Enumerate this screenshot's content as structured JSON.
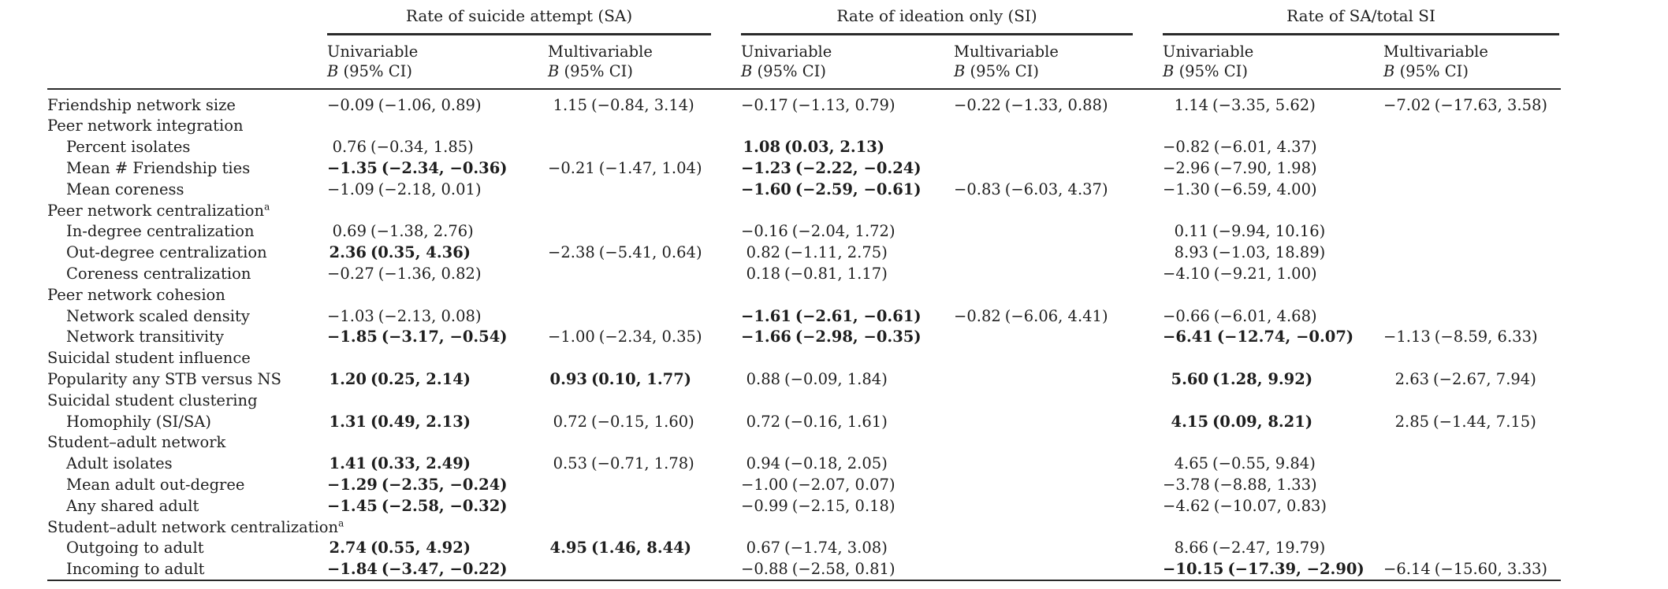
{
  "page": {
    "background": "#ffffff",
    "text_color": "#1e1e1e",
    "rule_color": "#2a2a2a"
  },
  "table": {
    "groups": [
      {
        "title": "Rate of suicide attempt (SA)"
      },
      {
        "title": "Rate of ideation only (SI)"
      },
      {
        "title": "Rate of SA/total SI"
      }
    ],
    "subheader": {
      "col_types": [
        "Univariable",
        "Multivariable"
      ],
      "stat_italic": "B",
      "stat_rest": "(95% CI)"
    },
    "rows": [
      {
        "label": "Friendship network size",
        "indent": false,
        "sup": "",
        "cells": [
          {
            "v": "−0.09 (−1.06, 0.89)",
            "b": false
          },
          {
            "v": "1.15 (−0.84, 3.14)",
            "b": false
          },
          {
            "v": "−0.17 (−1.13, 0.79)",
            "b": false
          },
          {
            "v": "−0.22 (−1.33, 0.88)",
            "b": false
          },
          {
            "v": "1.14 (−3.35, 5.62)",
            "b": false
          },
          {
            "v": "−7.02 (−17.63, 3.58)",
            "b": false
          }
        ]
      },
      {
        "label": "Peer network integration",
        "indent": false,
        "sup": "",
        "cells": [
          null,
          null,
          null,
          null,
          null,
          null
        ]
      },
      {
        "label": "Percent isolates",
        "indent": true,
        "sup": "",
        "cells": [
          {
            "v": "0.76 (−0.34, 1.85)",
            "b": false
          },
          null,
          {
            "v": "1.08 (0.03, 2.13)",
            "b": true
          },
          null,
          {
            "v": "−0.82 (−6.01, 4.37)",
            "b": false
          },
          null
        ]
      },
      {
        "label": "Mean # Friendship ties",
        "indent": true,
        "sup": "",
        "cells": [
          {
            "v": "−1.35 (−2.34, −0.36)",
            "b": true
          },
          {
            "v": "−0.21 (−1.47, 1.04)",
            "b": false
          },
          {
            "v": "−1.23 (−2.22, −0.24)",
            "b": true
          },
          null,
          {
            "v": "−2.96 (−7.90, 1.98)",
            "b": false
          },
          null
        ]
      },
      {
        "label": "Mean coreness",
        "indent": true,
        "sup": "",
        "cells": [
          {
            "v": "−1.09 (−2.18, 0.01)",
            "b": false
          },
          null,
          {
            "v": "−1.60 (−2.59, −0.61)",
            "b": true
          },
          {
            "v": "−0.83 (−6.03, 4.37)",
            "b": false
          },
          {
            "v": "−1.30 (−6.59, 4.00)",
            "b": false
          },
          null
        ]
      },
      {
        "label": "Peer network centralization",
        "indent": false,
        "sup": "a",
        "cells": [
          null,
          null,
          null,
          null,
          null,
          null
        ]
      },
      {
        "label": "In-degree centralization",
        "indent": true,
        "sup": "",
        "cells": [
          {
            "v": "0.69 (−1.38, 2.76)",
            "b": false
          },
          null,
          {
            "v": "−0.16 (−2.04, 1.72)",
            "b": false
          },
          null,
          {
            "v": "0.11 (−9.94, 10.16)",
            "b": false
          },
          null
        ]
      },
      {
        "label": "Out-degree centralization",
        "indent": true,
        "sup": "",
        "cells": [
          {
            "v": "2.36 (0.35, 4.36)",
            "b": true
          },
          {
            "v": "−2.38 (−5.41, 0.64)",
            "b": false
          },
          {
            "v": "0.82 (−1.11, 2.75)",
            "b": false
          },
          null,
          {
            "v": "8.93 (−1.03, 18.89)",
            "b": false
          },
          null
        ]
      },
      {
        "label": "Coreness centralization",
        "indent": true,
        "sup": "",
        "cells": [
          {
            "v": "−0.27 (−1.36, 0.82)",
            "b": false
          },
          null,
          {
            "v": "0.18 (−0.81, 1.17)",
            "b": false
          },
          null,
          {
            "v": "−4.10 (−9.21, 1.00)",
            "b": false
          },
          null
        ]
      },
      {
        "label": "Peer network cohesion",
        "indent": false,
        "sup": "",
        "cells": [
          null,
          null,
          null,
          null,
          null,
          null
        ]
      },
      {
        "label": "Network scaled density",
        "indent": true,
        "sup": "",
        "cells": [
          {
            "v": "−1.03 (−2.13, 0.08)",
            "b": false
          },
          null,
          {
            "v": "−1.61 (−2.61, −0.61)",
            "b": true
          },
          {
            "v": "−0.82 (−6.06, 4.41)",
            "b": false
          },
          {
            "v": "−0.66 (−6.01, 4.68)",
            "b": false
          },
          null
        ]
      },
      {
        "label": "Network transitivity",
        "indent": true,
        "sup": "",
        "cells": [
          {
            "v": "−1.85 (−3.17, −0.54)",
            "b": true
          },
          {
            "v": "−1.00 (−2.34, 0.35)",
            "b": false
          },
          {
            "v": "−1.66 (−2.98, −0.35)",
            "b": true
          },
          null,
          {
            "v": "−6.41 (−12.74, −0.07)",
            "b": true
          },
          {
            "v": "−1.13 (−8.59, 6.33)",
            "b": false
          }
        ]
      },
      {
        "label": "Suicidal student influence",
        "indent": false,
        "sup": "",
        "cells": [
          null,
          null,
          null,
          null,
          null,
          null
        ]
      },
      {
        "label": "Popularity any STB versus NS",
        "indent": false,
        "sup": "",
        "cells": [
          {
            "v": "1.20 (0.25, 2.14)",
            "b": true
          },
          {
            "v": "0.93 (0.10, 1.77)",
            "b": true
          },
          {
            "v": "0.88 (−0.09, 1.84)",
            "b": false
          },
          null,
          {
            "v": "5.60 (1.28, 9.92)",
            "b": true
          },
          {
            "v": "2.63 (−2.67, 7.94)",
            "b": false
          }
        ]
      },
      {
        "label": "Suicidal student clustering",
        "indent": false,
        "sup": "",
        "cells": [
          null,
          null,
          null,
          null,
          null,
          null
        ]
      },
      {
        "label": "Homophily (SI/SA)",
        "indent": true,
        "sup": "",
        "cells": [
          {
            "v": "1.31 (0.49, 2.13)",
            "b": true
          },
          {
            "v": "0.72 (−0.15, 1.60)",
            "b": false
          },
          {
            "v": "0.72 (−0.16, 1.61)",
            "b": false
          },
          null,
          {
            "v": "4.15 (0.09, 8.21)",
            "b": true
          },
          {
            "v": "2.85 (−1.44, 7.15)",
            "b": false
          }
        ]
      },
      {
        "label": "Student–adult network",
        "indent": false,
        "sup": "",
        "cells": [
          null,
          null,
          null,
          null,
          null,
          null
        ]
      },
      {
        "label": "Adult isolates",
        "indent": true,
        "sup": "",
        "cells": [
          {
            "v": "1.41 (0.33, 2.49)",
            "b": true
          },
          {
            "v": "0.53 (−0.71, 1.78)",
            "b": false
          },
          {
            "v": "0.94 (−0.18, 2.05)",
            "b": false
          },
          null,
          {
            "v": "4.65 (−0.55, 9.84)",
            "b": false
          },
          null
        ]
      },
      {
        "label": "Mean adult out-degree",
        "indent": true,
        "sup": "",
        "cells": [
          {
            "v": "−1.29 (−2.35, −0.24)",
            "b": true
          },
          null,
          {
            "v": "−1.00 (−2.07, 0.07)",
            "b": false
          },
          null,
          {
            "v": "−3.78 (−8.88, 1.33)",
            "b": false
          },
          null
        ]
      },
      {
        "label": "Any shared adult",
        "indent": true,
        "sup": "",
        "cells": [
          {
            "v": "−1.45 (−2.58, −0.32)",
            "b": true
          },
          null,
          {
            "v": "−0.99 (−2.15, 0.18)",
            "b": false
          },
          null,
          {
            "v": "−4.62 (−10.07, 0.83)",
            "b": false
          },
          null
        ]
      },
      {
        "label": "Student–adult network centralization",
        "indent": false,
        "sup": "a",
        "cells": [
          null,
          null,
          null,
          null,
          null,
          null
        ]
      },
      {
        "label": "Outgoing to adult",
        "indent": true,
        "sup": "",
        "cells": [
          {
            "v": "2.74 (0.55, 4.92)",
            "b": true
          },
          {
            "v": "4.95 (1.46, 8.44)",
            "b": true
          },
          {
            "v": "0.67 (−1.74, 3.08)",
            "b": false
          },
          null,
          {
            "v": "8.66 (−2.47, 19.79)",
            "b": false
          },
          null
        ]
      },
      {
        "label": "Incoming to adult",
        "indent": true,
        "sup": "",
        "cells": [
          {
            "v": "−1.84 (−3.47, −0.22)",
            "b": true
          },
          null,
          {
            "v": "−0.88 (−2.58, 0.81)",
            "b": false
          },
          null,
          {
            "v": "−10.15 (−17.39, −2.90)",
            "b": true
          },
          {
            "v": "−6.14 (−15.60, 3.33)",
            "b": false
          }
        ]
      }
    ]
  }
}
